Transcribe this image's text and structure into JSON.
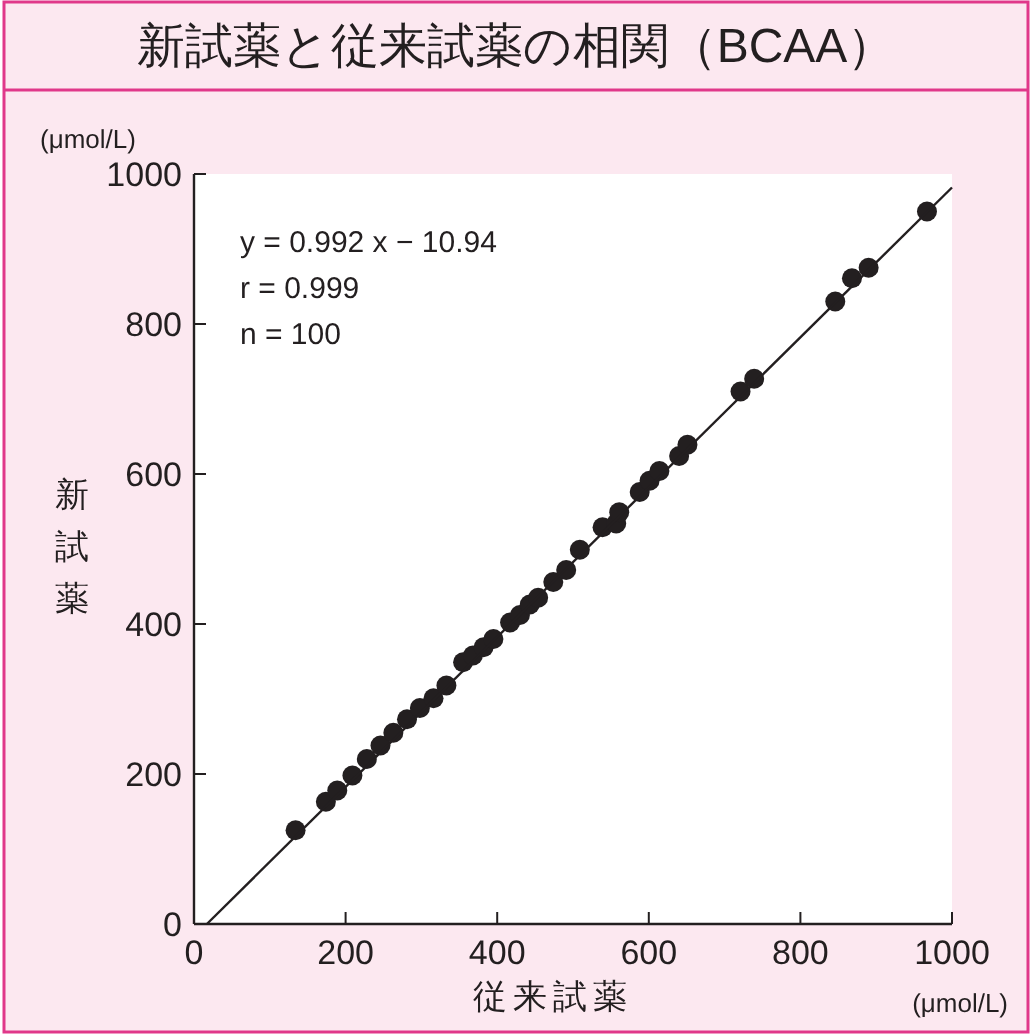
{
  "chart_data": {
    "type": "scatter",
    "title": "新試薬と従来試薬の相関（BCAA）",
    "xlabel": "従来試薬",
    "ylabel": "新試薬",
    "annotations": [
      "y = 0.992 x − 10.94",
      "r = 0.999",
      "n = 100",
      "(μmol/L)",
      "(μmol/L)"
    ],
    "xlim": [
      0,
      1000
    ],
    "ylim": [
      0,
      1000
    ],
    "xticks": [
      0,
      200,
      400,
      600,
      800,
      1000
    ],
    "yticks": [
      0,
      200,
      400,
      600,
      800,
      1000
    ],
    "series": [
      {
        "color": "#231f20",
        "x": [
          134,
          174,
          189,
          209,
          228,
          246,
          263,
          281,
          298,
          316,
          333,
          355,
          368,
          382,
          395,
          417,
          430,
          443,
          454,
          474,
          491,
          509,
          539,
          557,
          561,
          588,
          601,
          614,
          640,
          651,
          721,
          739,
          846,
          868,
          890,
          967
        ],
        "values": [
          125,
          163,
          178,
          198,
          220,
          238,
          255,
          273,
          288,
          301,
          318,
          349,
          358,
          369,
          380,
          402,
          412,
          426,
          435,
          456,
          472,
          499,
          529,
          534,
          549,
          576,
          591,
          604,
          624,
          639,
          710,
          727,
          830,
          861,
          875,
          950
        ],
        "marker": "circle"
      },
      {
        "type": "line",
        "color": "#231f20",
        "x": [
          17,
          1000
        ],
        "values": [
          0,
          982
        ]
      }
    ]
  }
}
